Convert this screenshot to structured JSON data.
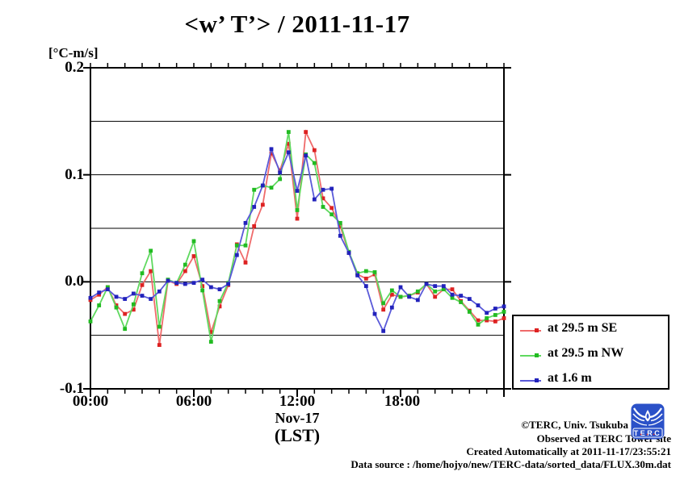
{
  "title": "<w’ T’> / 2011-11-17",
  "axes": {
    "unit_label": "[°C-m/s]",
    "y_tick_labels": [
      "0.2",
      "0.1",
      "0.0",
      "-0.1"
    ],
    "x_tick_labels": [
      "00:00",
      "06:00",
      "12:00",
      "18:00"
    ],
    "x_label_line1": "Nov-17",
    "x_label_line2": "(LST)"
  },
  "chart_data": {
    "type": "line",
    "title": "<w’ T’> / 2011-11-17",
    "xlabel": "Nov-17 (LST)",
    "ylabel": "[°C-m/s]",
    "x_unit": "hours (local standard time), 30-min interval",
    "xlim_hours": [
      0,
      24
    ],
    "ylim": [
      -0.1,
      0.2
    ],
    "grid": "on",
    "grid_values": [
      0.15,
      0.1,
      0.05,
      0.0,
      -0.05
    ],
    "y_major_ticks": [
      0.2,
      0.1,
      0.0,
      -0.1
    ],
    "x_major_ticks_hours": [
      0,
      6,
      12,
      18,
      24
    ],
    "x_minor_tick_interval_hours": 1,
    "legend_position": "outside-right-bottom",
    "x_hours": [
      0,
      0.5,
      1,
      1.5,
      2,
      2.5,
      3,
      3.5,
      4,
      4.5,
      5,
      5.5,
      6,
      6.5,
      7,
      7.5,
      8,
      8.5,
      9,
      9.5,
      10,
      10.5,
      11,
      11.5,
      12,
      12.5,
      13,
      13.5,
      14,
      14.5,
      15,
      15.5,
      16,
      16.5,
      17,
      17.5,
      18,
      18.5,
      19,
      19.5,
      20,
      20.5,
      21,
      21.5,
      22,
      22.5,
      23,
      23.5,
      24
    ],
    "series": [
      {
        "name": "at 29.5 m SE",
        "color": "#dd2222",
        "line_color": "#ef6a6a",
        "values": [
          -0.017,
          -0.012,
          -0.005,
          -0.022,
          -0.03,
          -0.026,
          -0.003,
          0.01,
          -0.059,
          0.001,
          -0.002,
          0.01,
          0.024,
          -0.004,
          -0.047,
          -0.023,
          -0.003,
          0.035,
          0.018,
          0.052,
          0.072,
          0.12,
          0.104,
          0.129,
          0.059,
          0.14,
          0.123,
          0.078,
          0.069,
          0.052,
          0.027,
          0.007,
          0.003,
          0.007,
          -0.026,
          -0.012,
          -0.014,
          -0.013,
          -0.01,
          -0.002,
          -0.014,
          -0.007,
          -0.007,
          -0.018,
          -0.027,
          -0.036,
          -0.036,
          -0.037,
          -0.034
        ]
      },
      {
        "name": "at 29.5 m NW",
        "color": "#22bb22",
        "line_color": "#5fd95f",
        "values": [
          -0.037,
          -0.022,
          -0.005,
          -0.024,
          -0.044,
          -0.021,
          0.008,
          0.029,
          -0.042,
          0.002,
          -0.001,
          0.016,
          0.038,
          -0.008,
          -0.056,
          -0.018,
          -0.001,
          0.034,
          0.034,
          0.086,
          0.09,
          0.088,
          0.096,
          0.14,
          0.067,
          0.119,
          0.111,
          0.07,
          0.063,
          0.055,
          0.028,
          0.008,
          0.01,
          0.009,
          -0.02,
          -0.008,
          -0.014,
          -0.013,
          -0.009,
          -0.002,
          -0.009,
          -0.007,
          -0.015,
          -0.019,
          -0.028,
          -0.04,
          -0.034,
          -0.031,
          -0.028
        ]
      },
      {
        "name": "at 1.6 m",
        "color": "#2222bb",
        "line_color": "#5a5ad9",
        "values": [
          -0.015,
          -0.01,
          -0.007,
          -0.014,
          -0.016,
          -0.011,
          -0.013,
          -0.016,
          -0.009,
          0.001,
          -0.001,
          -0.002,
          -0.001,
          0.002,
          -0.005,
          -0.007,
          -0.002,
          0.025,
          0.055,
          0.07,
          0.09,
          0.124,
          0.102,
          0.121,
          0.085,
          0.118,
          0.077,
          0.086,
          0.087,
          0.043,
          0.027,
          0.006,
          -0.004,
          -0.03,
          -0.046,
          -0.024,
          -0.005,
          -0.014,
          -0.017,
          -0.002,
          -0.004,
          -0.004,
          -0.012,
          -0.013,
          -0.016,
          -0.022,
          -0.029,
          -0.025,
          -0.023
        ]
      }
    ]
  },
  "legend": {
    "items": [
      {
        "label": "at 29.5 m SE"
      },
      {
        "label": "at 29.5 m NW"
      },
      {
        "label": "at 1.6 m"
      }
    ]
  },
  "footer": {
    "line1": "©TERC, Univ. Tsukuba",
    "line2": "Observed at TERC Tower site",
    "line3": "Created Automatically at 2011-11-17/23:55:21",
    "line4": "Data source : /home/hojyo/new/TERC-data/sorted_data/FLUX.30m.dat",
    "logo_text": "TERC"
  }
}
